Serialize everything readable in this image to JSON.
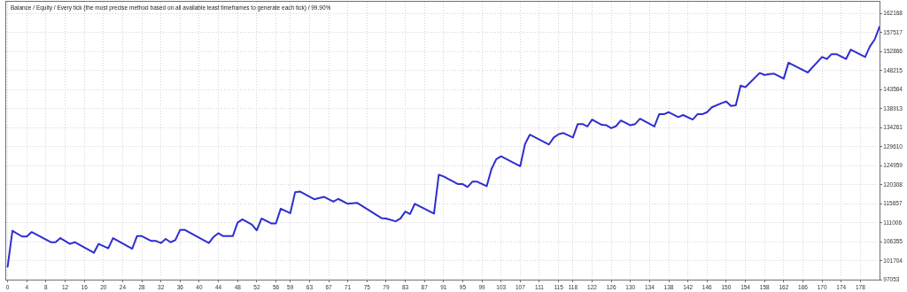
{
  "chart_data": {
    "type": "line",
    "title": "Balance / Equity / Every tick (the most precise method based on all available least timeframes to generate each tick) / 99.90%",
    "x": [
      0,
      1,
      3,
      4,
      5,
      9,
      10,
      11,
      13,
      14,
      18,
      19,
      21,
      22,
      26,
      27,
      28,
      30,
      31,
      32,
      33,
      34,
      35,
      36,
      37,
      42,
      43,
      44,
      45,
      47,
      48,
      49,
      51,
      52,
      53,
      55,
      56,
      57,
      59,
      60,
      61,
      64,
      66,
      68,
      69,
      71,
      73,
      78,
      79,
      81,
      82,
      83,
      84,
      85,
      89,
      90,
      91,
      94,
      95,
      96,
      97,
      98,
      100,
      101,
      102,
      103,
      107,
      108,
      109,
      113,
      114,
      115,
      116,
      118,
      119,
      120,
      121,
      122,
      124,
      125,
      126,
      127,
      128,
      130,
      131,
      132,
      135,
      136,
      137,
      138,
      140,
      141,
      143,
      144,
      145,
      146,
      147,
      149,
      150,
      151,
      152,
      153,
      154,
      157,
      158,
      159,
      160,
      162,
      163,
      167,
      170,
      171,
      172,
      173,
      175,
      176,
      179,
      180,
      181,
      182
    ],
    "series": [
      {
        "color": "#2e2ed0",
        "values": [
          100200,
          109000,
          107600,
          107600,
          108700,
          106200,
          106200,
          107200,
          105800,
          106200,
          103600,
          105800,
          104700,
          107200,
          104600,
          107700,
          107700,
          106500,
          106500,
          106000,
          107000,
          106200,
          106700,
          109200,
          109200,
          106000,
          107500,
          108400,
          107700,
          107700,
          111000,
          111800,
          110500,
          109100,
          112000,
          110800,
          110800,
          114400,
          113300,
          118400,
          118600,
          116700,
          117300,
          116100,
          116800,
          115600,
          115800,
          112100,
          112000,
          111300,
          112000,
          113700,
          113100,
          115600,
          113200,
          122700,
          122300,
          120400,
          120400,
          119700,
          121000,
          121000,
          119900,
          124100,
          126500,
          127200,
          124800,
          130200,
          132500,
          130100,
          131800,
          132600,
          132900,
          131800,
          135100,
          135100,
          134500,
          136200,
          134900,
          134800,
          134100,
          134600,
          136000,
          134800,
          135100,
          136400,
          134500,
          137500,
          137500,
          138000,
          136800,
          137300,
          136200,
          137500,
          137500,
          138000,
          139200,
          140200,
          140600,
          139500,
          139700,
          144500,
          144100,
          147600,
          147100,
          147300,
          147400,
          146200,
          150100,
          147700,
          151500,
          151000,
          152200,
          152200,
          151000,
          153300,
          151500,
          154100,
          155800,
          158900
        ]
      }
    ],
    "xlim": [
      -0.3,
      182
    ],
    "xticks": [
      0,
      4,
      8,
      12,
      16,
      20,
      24,
      28,
      32,
      36,
      40,
      44,
      48,
      52,
      56,
      59,
      63,
      67,
      71,
      75,
      79,
      83,
      87,
      91,
      95,
      99,
      103,
      107,
      111,
      115,
      118,
      122,
      126,
      130,
      134,
      138,
      142,
      146,
      150,
      154,
      158,
      162,
      166,
      170,
      174,
      178
    ],
    "ylim": [
      97053,
      165000
    ],
    "yticks": [
      97053,
      101704,
      106355,
      111006,
      115657,
      120308,
      124959,
      129610,
      134261,
      138913,
      143564,
      148215,
      152866,
      157517,
      162168
    ],
    "grid": true,
    "marker": "none",
    "line_style": "solid"
  }
}
